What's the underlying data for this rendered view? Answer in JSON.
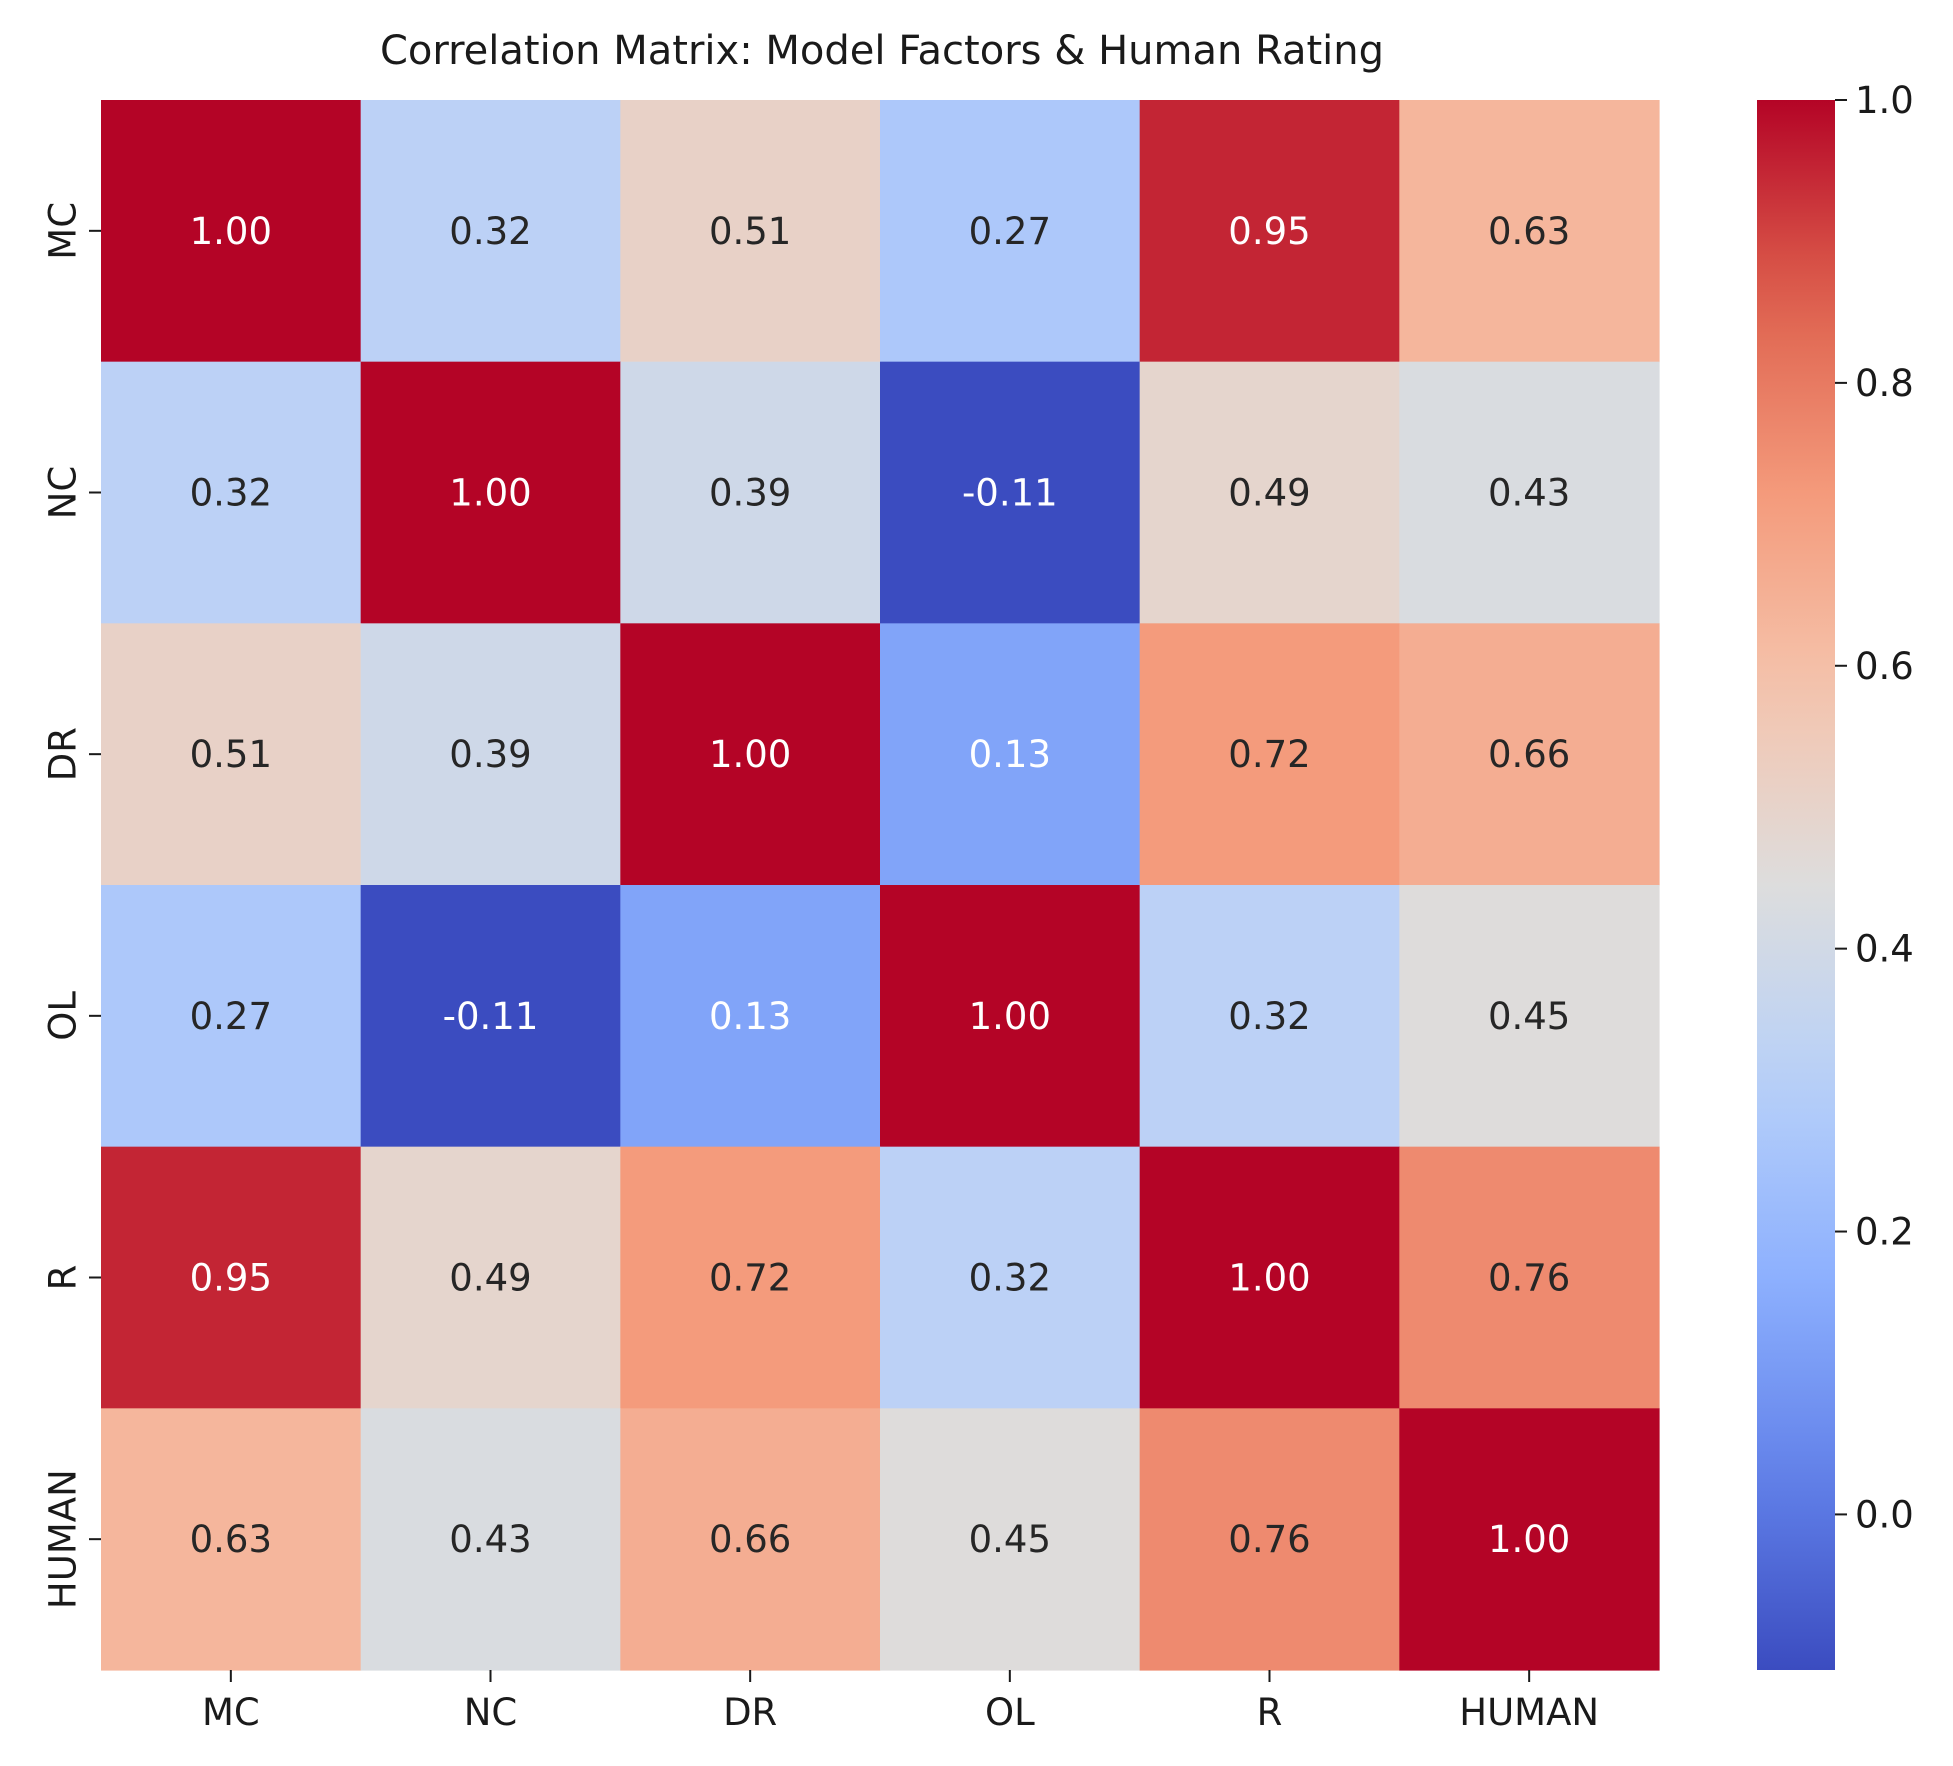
{
  "chart_data": {
    "type": "heatmap",
    "title": "Correlation Matrix: Model Factors & Human Rating",
    "xlabel": "",
    "ylabel": "",
    "x_labels": [
      "MC",
      "NC",
      "DR",
      "OL",
      "R",
      "HUMAN"
    ],
    "y_labels": [
      "MC",
      "NC",
      "DR",
      "OL",
      "R",
      "HUMAN"
    ],
    "values": [
      [
        1.0,
        0.32,
        0.51,
        0.27,
        0.95,
        0.63
      ],
      [
        0.32,
        1.0,
        0.39,
        -0.11,
        0.49,
        0.43
      ],
      [
        0.51,
        0.39,
        1.0,
        0.13,
        0.72,
        0.66
      ],
      [
        0.27,
        -0.11,
        0.13,
        1.0,
        0.32,
        0.45
      ],
      [
        0.95,
        0.49,
        0.72,
        0.32,
        1.0,
        0.76
      ],
      [
        0.63,
        0.43,
        0.66,
        0.45,
        0.76,
        1.0
      ]
    ],
    "annotation_format": "0.00",
    "colormap": "coolwarm",
    "color_range": [
      -0.11,
      1.0
    ],
    "colorbar_ticks": [
      "0.0",
      "0.2",
      "0.4",
      "0.6",
      "0.8",
      "1.0"
    ],
    "colorbar_tick_values": [
      0.0,
      0.2,
      0.4,
      0.6,
      0.8,
      1.0
    ],
    "legend": "colorbar-right"
  }
}
